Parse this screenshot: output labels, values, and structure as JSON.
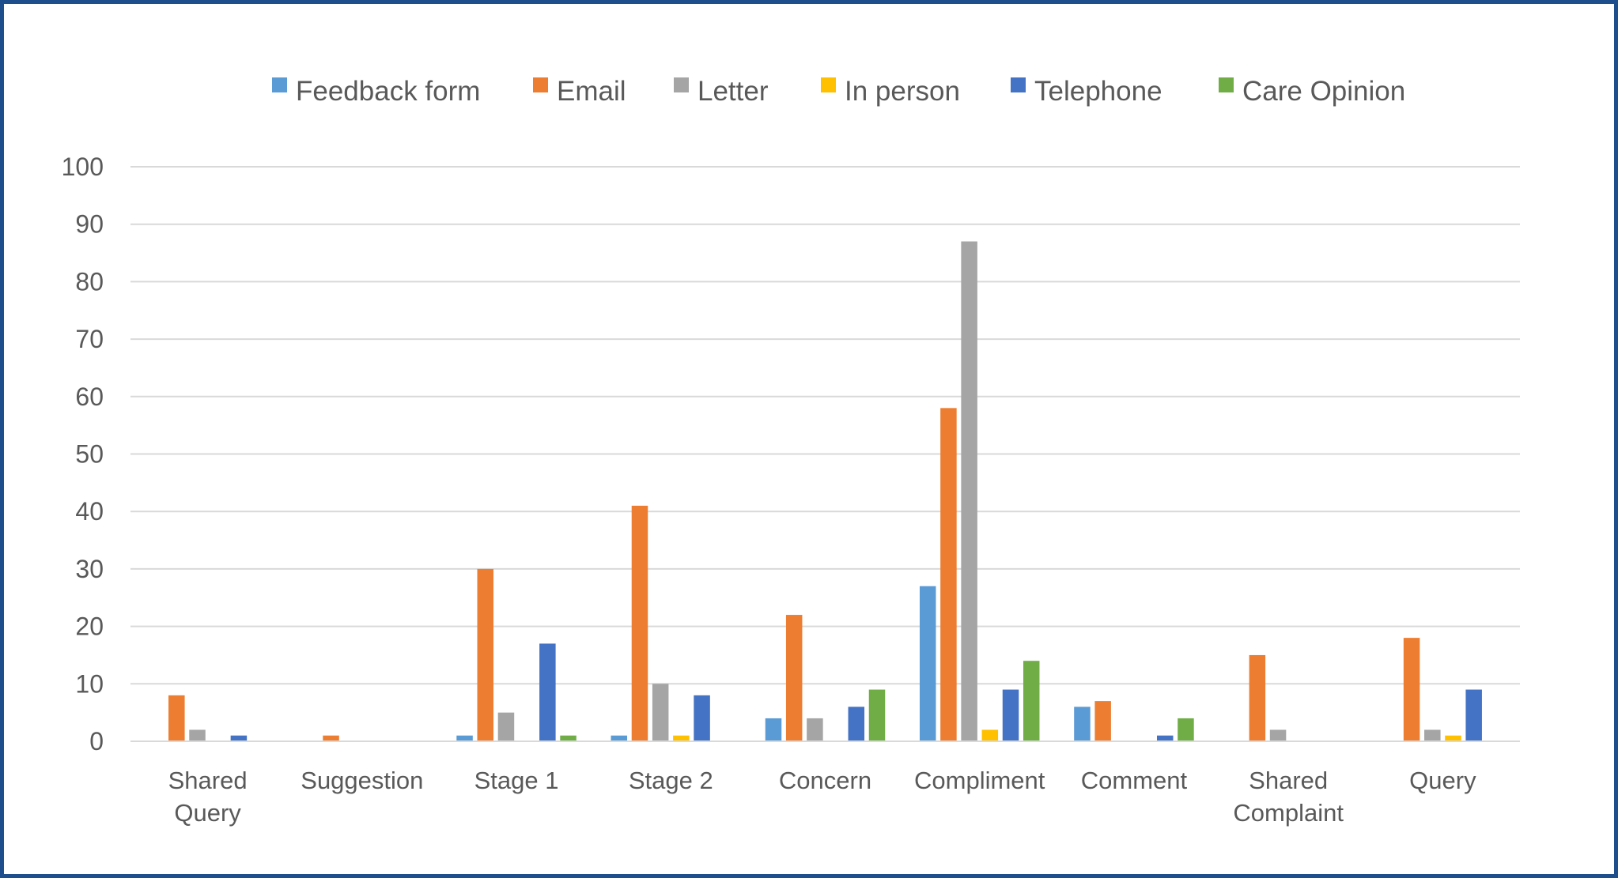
{
  "chart_data": {
    "type": "bar",
    "categories": [
      "Shared Query",
      "Suggestion",
      "Stage 1",
      "Stage 2",
      "Concern",
      "Compliment",
      "Comment",
      "Shared Complaint",
      "Query"
    ],
    "category_lines": [
      [
        "Shared",
        "Query"
      ],
      [
        "Suggestion"
      ],
      [
        "Stage 1"
      ],
      [
        "Stage 2"
      ],
      [
        "Concern"
      ],
      [
        "Compliment"
      ],
      [
        "Comment"
      ],
      [
        "Shared",
        "Complaint"
      ],
      [
        "Query"
      ]
    ],
    "series": [
      {
        "name": "Feedback form",
        "color": "#5b9bd5",
        "values": [
          0,
          0,
          1,
          1,
          4,
          27,
          6,
          0,
          0
        ]
      },
      {
        "name": "Email",
        "color": "#ed7d31",
        "values": [
          8,
          1,
          30,
          41,
          22,
          58,
          7,
          15,
          18
        ]
      },
      {
        "name": "Letter",
        "color": "#a5a5a5",
        "values": [
          2,
          0,
          5,
          10,
          4,
          87,
          0,
          2,
          2
        ]
      },
      {
        "name": "In person",
        "color": "#ffc000",
        "values": [
          0,
          0,
          0,
          1,
          0,
          2,
          0,
          0,
          1
        ]
      },
      {
        "name": "Telephone",
        "color": "#4472c4",
        "values": [
          1,
          0,
          17,
          8,
          6,
          9,
          1,
          0,
          9
        ]
      },
      {
        "name": "Care Opinion",
        "color": "#70ad47",
        "values": [
          0,
          0,
          1,
          0,
          9,
          14,
          4,
          0,
          0
        ]
      }
    ],
    "ylim": [
      0,
      100
    ],
    "yticks": [
      "0",
      "10",
      "20",
      "30",
      "40",
      "50",
      "60",
      "70",
      "80",
      "90",
      "100"
    ],
    "grid": true,
    "legend_position": "top",
    "title": "",
    "xlabel": "",
    "ylabel": ""
  }
}
